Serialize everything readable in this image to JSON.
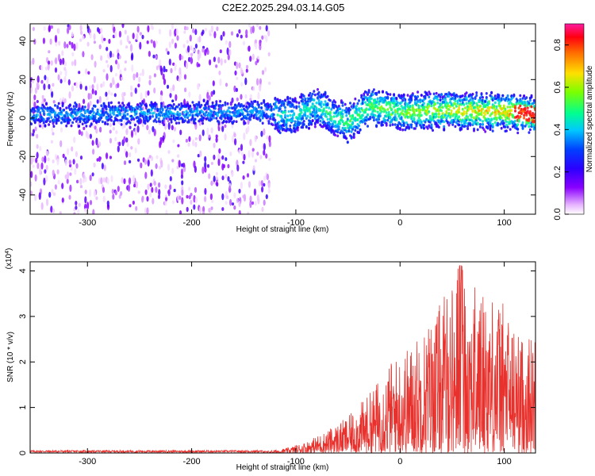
{
  "title": "C2E2.2025.294.03.14.G05",
  "chart_data": [
    {
      "type": "heatmap",
      "xlabel": "Height of straight line (km)",
      "ylabel": "Frequency (Hz)",
      "xlim": [
        -355,
        130
      ],
      "ylim": [
        -50,
        49
      ],
      "x_ticks": [
        "-300",
        "-200",
        "-100",
        "0",
        "100"
      ],
      "y_ticks": [
        "40",
        "20",
        "0",
        "-20",
        "-40"
      ],
      "colorbar": {
        "label": "Normalized spectral amplitude",
        "range": [
          0,
          0.9
        ],
        "ticks": [
          "0.0",
          "0.2",
          "0.4",
          "0.6",
          "0.8"
        ],
        "colormap": "rainbow (white-purple-blue-cyan-green-yellow-red-magenta)"
      },
      "description_points": [
        {
          "height_km": -355,
          "peak_frequency_hz": 2
        },
        {
          "height_km": -300,
          "peak_frequency_hz": 2
        },
        {
          "height_km": -200,
          "peak_frequency_hz": 3
        },
        {
          "height_km": -125,
          "peak_frequency_hz": 3
        },
        {
          "height_km": -100,
          "peak_frequency_hz": 1
        },
        {
          "height_km": -80,
          "peak_frequency_hz": 6
        },
        {
          "height_km": -50,
          "peak_frequency_hz": -3
        },
        {
          "height_km": -30,
          "peak_frequency_hz": 6
        },
        {
          "height_km": 0,
          "peak_frequency_hz": 3
        },
        {
          "height_km": 50,
          "peak_frequency_hz": 4
        },
        {
          "height_km": 100,
          "peak_frequency_hz": 3
        },
        {
          "height_km": 130,
          "peak_frequency_hz": 2
        }
      ],
      "noise_band_until_km": -125
    },
    {
      "type": "line",
      "xlabel": "Height of straight line (km)",
      "ylabel": "SNR (10 * v/v)",
      "multiplier": "(x10⁴)",
      "xlim": [
        -355,
        130
      ],
      "ylim": [
        0,
        4.2
      ],
      "x_ticks": [
        "-300",
        "-200",
        "-100",
        "0",
        "100"
      ],
      "y_ticks": [
        "0",
        "1",
        "2",
        "3",
        "4"
      ],
      "color": "#e8312c",
      "envelope": {
        "x": [
          -355,
          -130,
          -110,
          -90,
          -70,
          -50,
          -30,
          -10,
          10,
          30,
          45,
          58,
          70,
          85,
          100,
          115,
          130
        ],
        "y": [
          0.04,
          0.04,
          0.1,
          0.25,
          0.5,
          0.8,
          1.3,
          2.0,
          2.4,
          3.0,
          3.6,
          4.15,
          3.7,
          3.6,
          3.3,
          2.6,
          2.6
        ]
      }
    }
  ]
}
